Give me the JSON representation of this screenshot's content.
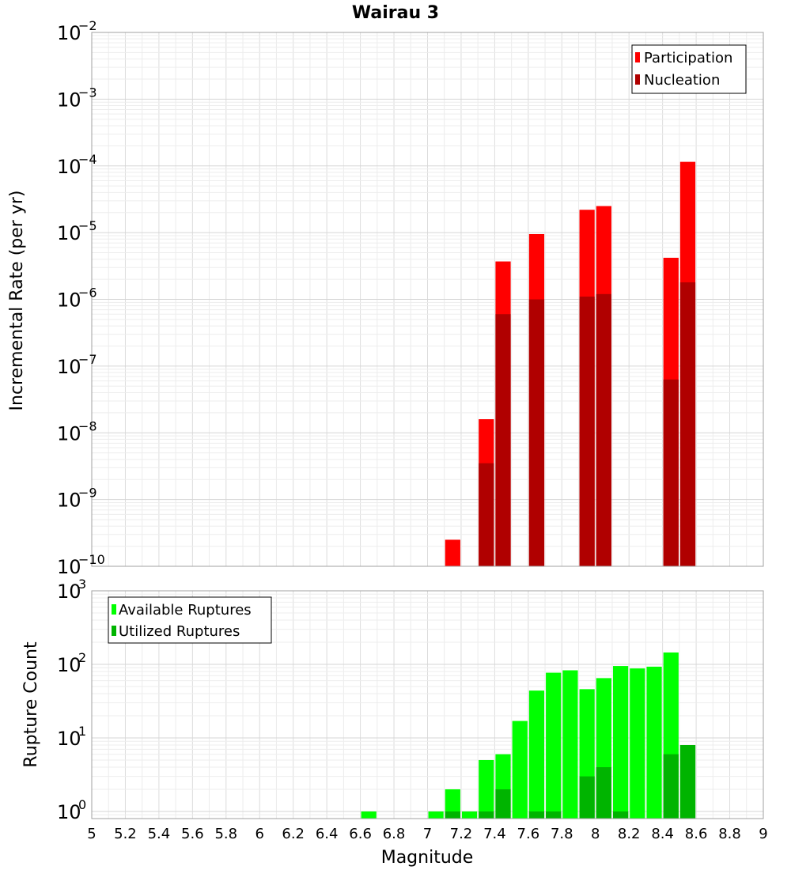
{
  "chart_data": [
    {
      "type": "bar",
      "title": "Wairau 3",
      "xlabel": "",
      "ylabel": "Incremental Rate (per yr)",
      "yscale": "log",
      "xlim": [
        5,
        9
      ],
      "ylim": [
        1e-10,
        0.01
      ],
      "grid": true,
      "legend_position": "top-right",
      "x": [
        7.15,
        7.35,
        7.45,
        7.65,
        7.95,
        8.05,
        8.45,
        8.55
      ],
      "series": [
        {
          "name": "Participation",
          "color": "#ff0000",
          "values": [
            2.5e-10,
            1.6e-08,
            3.7e-06,
            9.5e-06,
            2.2e-05,
            2.5e-05,
            4.2e-06,
            0.000115
          ]
        },
        {
          "name": "Nucleation",
          "color": "#b00000",
          "values": [
            null,
            3.5e-09,
            6e-07,
            1e-06,
            1.1e-06,
            1.2e-06,
            6.3e-08,
            1.8e-06
          ]
        }
      ]
    },
    {
      "type": "bar",
      "title": "",
      "xlabel": "Magnitude",
      "ylabel": "Rupture Count",
      "yscale": "log",
      "xlim": [
        5,
        9
      ],
      "ylim": [
        0.8,
        1000
      ],
      "grid": true,
      "legend_position": "top-left",
      "x": [
        6.65,
        7.05,
        7.15,
        7.25,
        7.35,
        7.45,
        7.55,
        7.65,
        7.75,
        7.85,
        7.95,
        8.05,
        8.15,
        8.25,
        8.35,
        8.45,
        8.55
      ],
      "series": [
        {
          "name": "Available Ruptures",
          "color": "#00ff00",
          "values": [
            1,
            1,
            2,
            1,
            5,
            6,
            17,
            44,
            77,
            83,
            46,
            65,
            95,
            88,
            93,
            145,
            8
          ]
        },
        {
          "name": "Utilized Ruptures",
          "color": "#00b400",
          "values": [
            null,
            null,
            1,
            null,
            1,
            2,
            null,
            1,
            1,
            null,
            3,
            4,
            1,
            null,
            null,
            6,
            8
          ]
        }
      ],
      "xticks": [
        "5",
        "5.2",
        "5.4",
        "5.6",
        "5.8",
        "6",
        "6.2",
        "6.4",
        "6.6",
        "6.8",
        "7",
        "7.2",
        "7.4",
        "7.6",
        "7.8",
        "8",
        "8.2",
        "8.4",
        "8.6",
        "8.8",
        "9"
      ]
    }
  ]
}
